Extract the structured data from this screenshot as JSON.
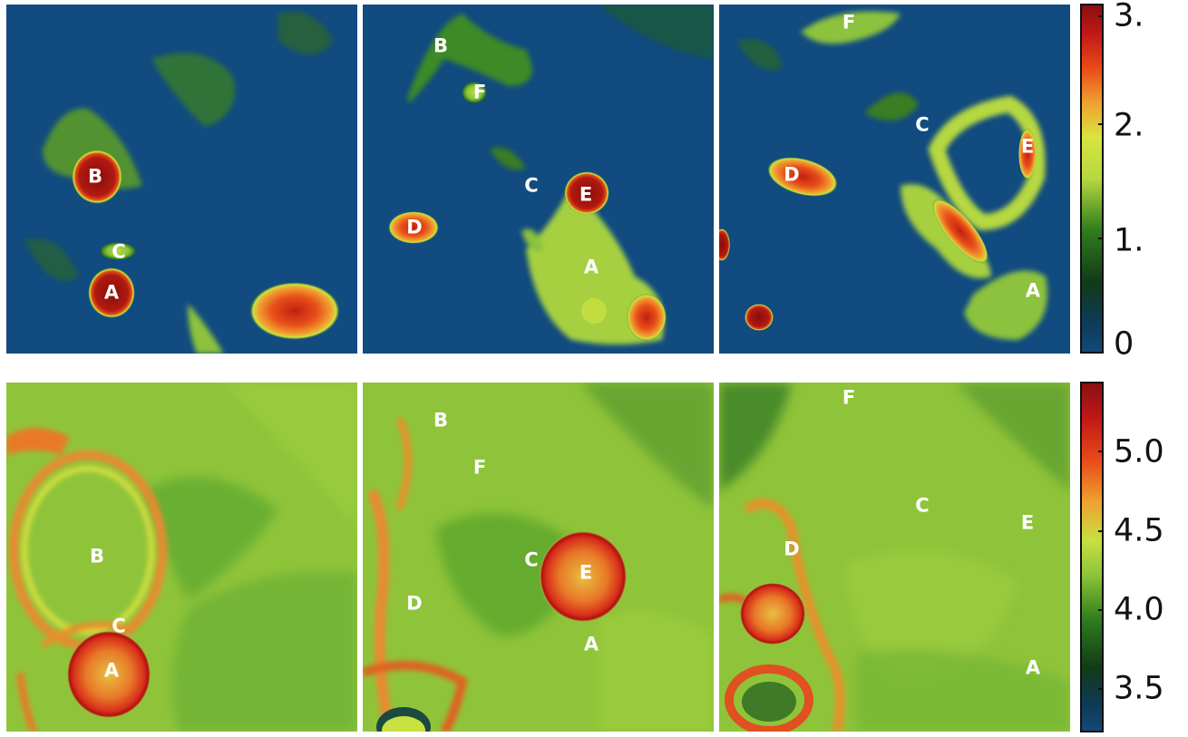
{
  "top_row": {
    "panels": [
      {
        "labels": [
          "B",
          "C",
          "A"
        ]
      },
      {
        "labels": [
          "B",
          "F",
          "C",
          "E",
          "D",
          "A"
        ]
      },
      {
        "labels": [
          "F",
          "C",
          "E",
          "D",
          "A"
        ]
      }
    ],
    "colorbar": {
      "ticks": [
        "3.",
        "2.",
        "1.",
        "0"
      ]
    }
  },
  "bottom_row": {
    "panels": [
      {
        "labels": [
          "B",
          "C",
          "A"
        ]
      },
      {
        "labels": [
          "B",
          "F",
          "C",
          "E",
          "D",
          "A"
        ]
      },
      {
        "labels": [
          "F",
          "D",
          "C",
          "E",
          "A"
        ]
      }
    ],
    "colorbar": {
      "ticks": [
        "5.0",
        "4.5",
        "4.0",
        "3.5"
      ]
    }
  },
  "colors": {
    "background_top": "#0d4a82",
    "background_bottom": "#8fc43a",
    "hot": "#b01a10",
    "warm": "#e86a20",
    "mid": "#c8e040",
    "cool": "#2f7d1d"
  }
}
